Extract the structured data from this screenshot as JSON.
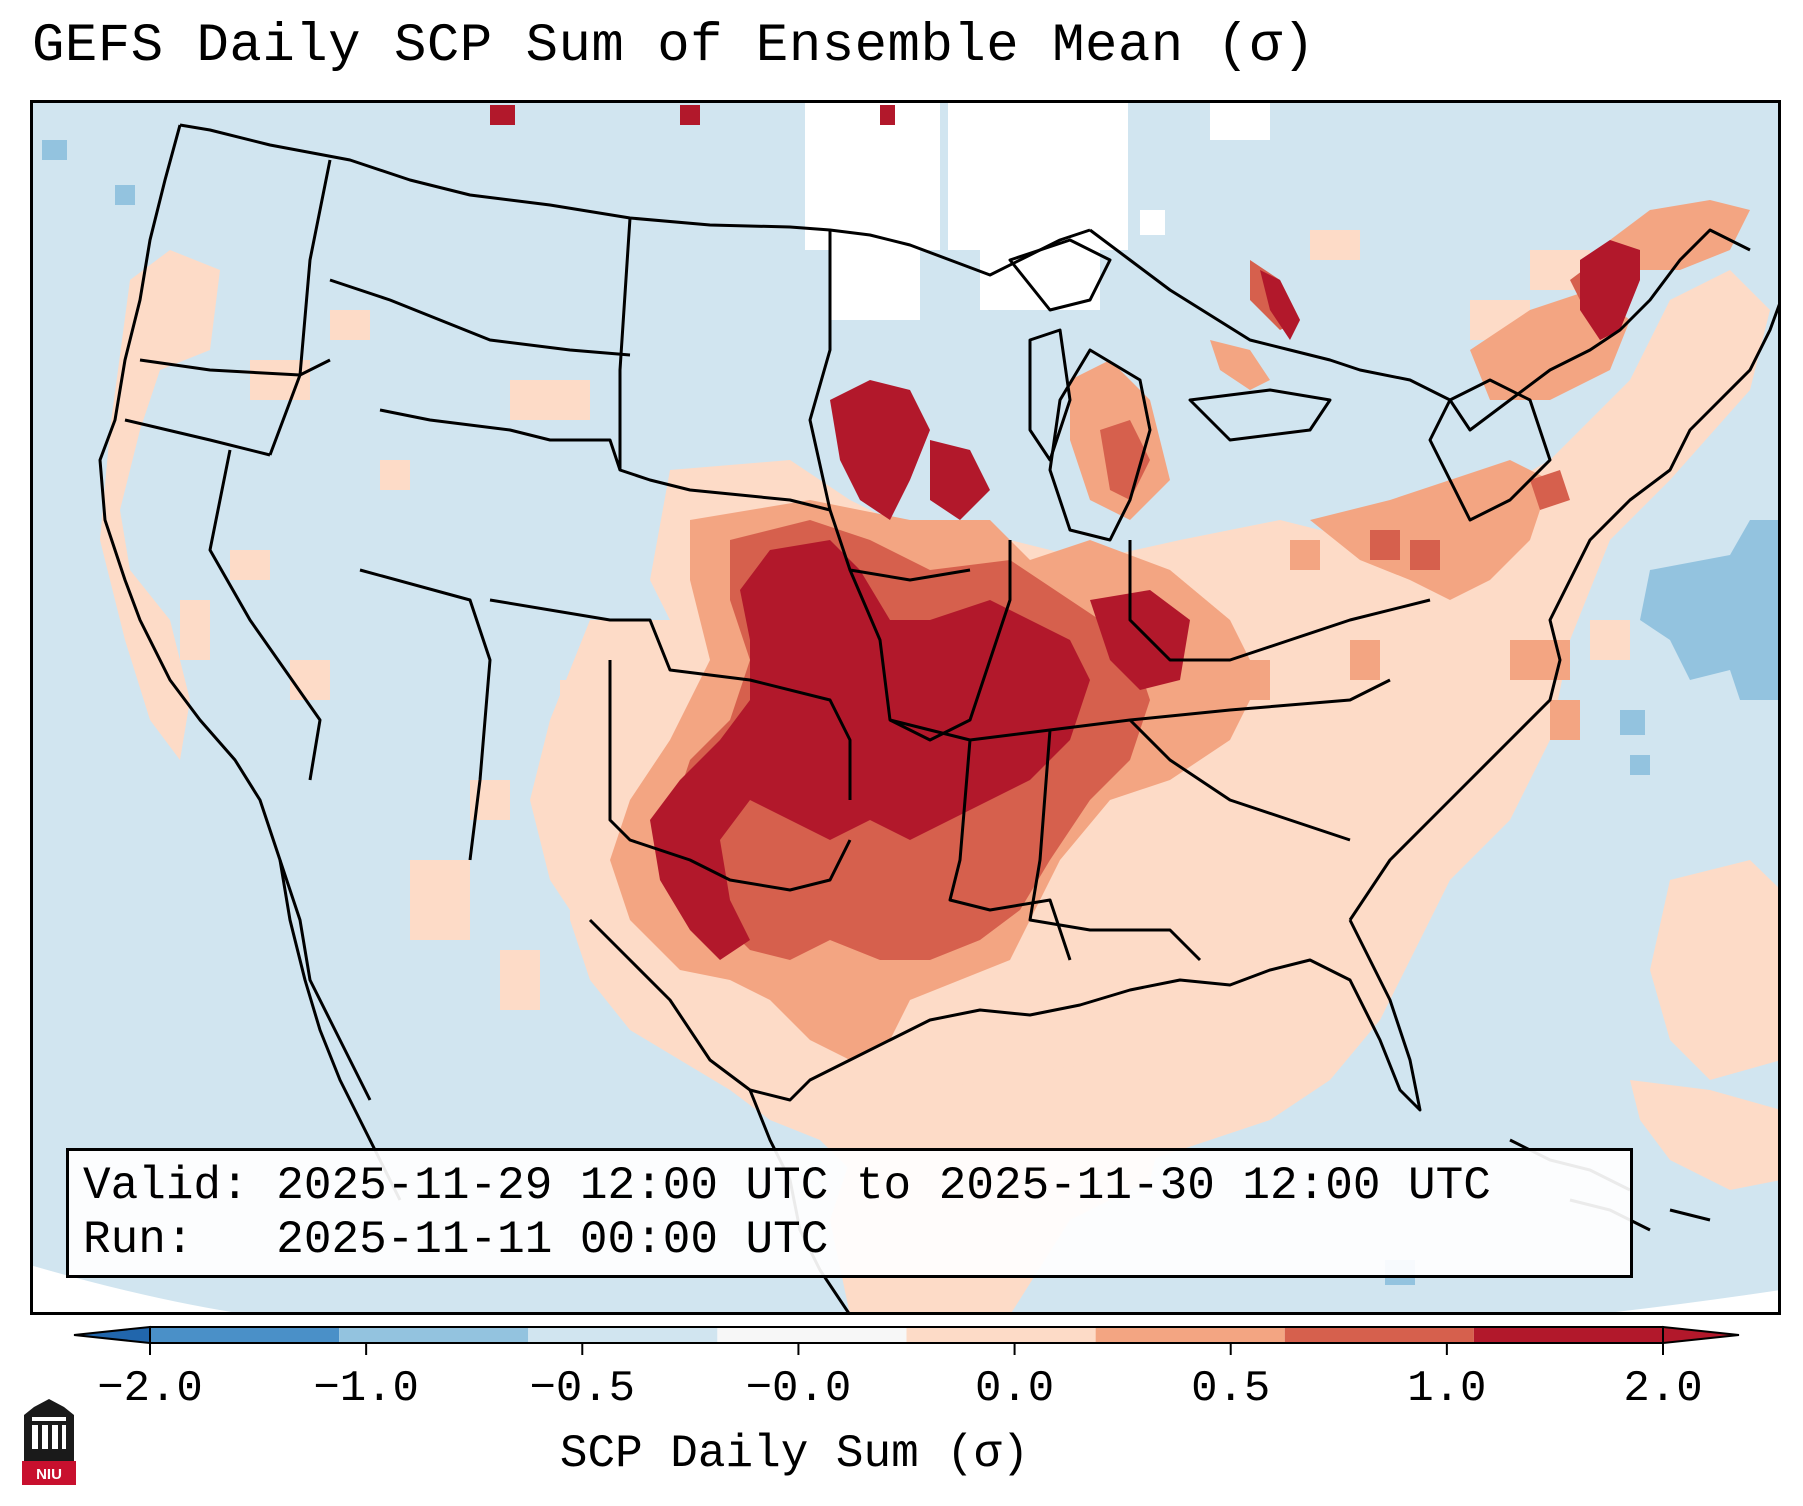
{
  "title": "GEFS Daily SCP Sum of Ensemble Mean (σ)",
  "info_box": {
    "valid_label": "Valid:",
    "valid_value": "2025-11-29 12:00 UTC to 2025-11-30 12:00 UTC",
    "run_label": "Run:",
    "run_value": "2025-11-11 00:00 UTC"
  },
  "colorbar": {
    "ticks": [
      "−2.0",
      "−1.0",
      "−0.5",
      "−0.0",
      "0.0",
      "0.5",
      "1.0",
      "2.0"
    ],
    "colors": [
      "#4a90c8",
      "#93c3df",
      "#d1e5f0",
      "#f7f7f7",
      "#fddbc7",
      "#f3a582",
      "#d6604d",
      "#b2182b"
    ],
    "label": "SCP Daily Sum (σ)"
  },
  "map_colors": {
    "background": "#d1e5f0",
    "light_positive": "#fddbc7",
    "medium_positive": "#f3a582",
    "strong_positive": "#d6604d",
    "extreme_positive": "#b2182b",
    "light_negative": "#93c3df",
    "neutral": "#ffffff"
  },
  "logo": {
    "text": "NIU"
  }
}
